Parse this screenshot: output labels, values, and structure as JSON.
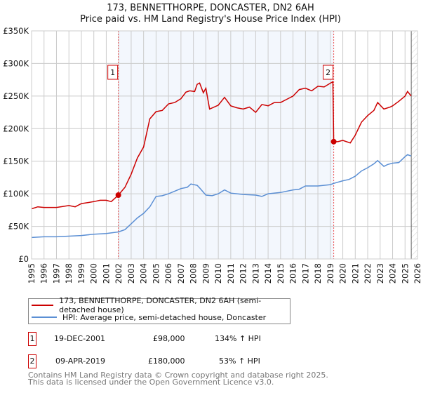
{
  "chart_data": {
    "type": "line",
    "title": "173, BENNETTHORPE, DONCASTER, DN2 6AH",
    "subtitle": "Price paid vs. HM Land Registry's House Price Index (HPI)",
    "xlim": [
      1995,
      2026
    ],
    "ylim": [
      0,
      350000
    ],
    "x_ticks": [
      "1995",
      "1996",
      "1997",
      "1998",
      "1999",
      "2000",
      "2001",
      "2002",
      "2003",
      "2004",
      "2005",
      "2006",
      "2007",
      "2008",
      "2009",
      "2010",
      "2011",
      "2012",
      "2013",
      "2014",
      "2015",
      "2016",
      "2017",
      "2018",
      "2019",
      "2020",
      "2021",
      "2022",
      "2023",
      "2024",
      "2025",
      "2026"
    ],
    "y_ticks": [
      {
        "v": 0,
        "label": "£0"
      },
      {
        "v": 50000,
        "label": "£50K"
      },
      {
        "v": 100000,
        "label": "£100K"
      },
      {
        "v": 150000,
        "label": "£150K"
      },
      {
        "v": 200000,
        "label": "£200K"
      },
      {
        "v": 250000,
        "label": "£250K"
      },
      {
        "v": 300000,
        "label": "£300K"
      },
      {
        "v": 350000,
        "label": "£350K"
      }
    ],
    "grid": true,
    "shaded_range": [
      2001.97,
      2019.27
    ],
    "hatched_from": 2025.5,
    "series": [
      {
        "name": "173, BENNETTHORPE, DONCASTER, DN2 6AH (semi-detached house)",
        "color": "#cc0000",
        "x": [
          1995,
          1995.5,
          1996,
          1997,
          1998,
          1998.5,
          1999,
          2000,
          2000.5,
          2001,
          2001.4,
          2001.97,
          2002.5,
          2003,
          2003.5,
          2004,
          2004.5,
          2005,
          2005.5,
          2006,
          2006.5,
          2007,
          2007.4,
          2007.7,
          2008.1,
          2008.3,
          2008.5,
          2008.8,
          2009,
          2009.3,
          2010,
          2010.5,
          2011,
          2011.5,
          2012,
          2012.5,
          2013,
          2013.5,
          2014,
          2014.5,
          2015,
          2015.5,
          2016,
          2016.5,
          2017,
          2017.5,
          2018,
          2018.5,
          2019.2,
          2019.27,
          2019.6,
          2020,
          2020.6,
          2021,
          2021.5,
          2022,
          2022.5,
          2022.8,
          2023.3,
          2023.8,
          2024,
          2024.5,
          2025,
          2025.2,
          2025.5
        ],
        "y": [
          77000,
          80000,
          79000,
          79000,
          82000,
          80000,
          85000,
          88000,
          90000,
          90000,
          88000,
          98000,
          110000,
          130000,
          155000,
          172000,
          215000,
          226000,
          228000,
          238000,
          240000,
          246000,
          256000,
          258000,
          257000,
          268000,
          270000,
          255000,
          262000,
          230000,
          236000,
          248000,
          235000,
          232000,
          230000,
          233000,
          225000,
          237000,
          235000,
          240000,
          240000,
          245000,
          250000,
          260000,
          262000,
          258000,
          265000,
          264000,
          272000,
          180000,
          180000,
          182000,
          178000,
          190000,
          210000,
          220000,
          228000,
          240000,
          230000,
          233000,
          235000,
          242000,
          250000,
          257000,
          250000
        ]
      },
      {
        "name": "HPI: Average price, semi-detached house, Doncaster",
        "color": "#5b8fd4",
        "x": [
          1995,
          1996,
          1997,
          1998,
          1999,
          2000,
          2001,
          2001.97,
          2002.5,
          2003,
          2003.5,
          2004,
          2004.5,
          2005,
          2005.5,
          2006,
          2006.5,
          2007,
          2007.5,
          2007.8,
          2008.3,
          2008.5,
          2009,
          2009.5,
          2010,
          2010.5,
          2011,
          2011.5,
          2012,
          2013,
          2013.5,
          2014,
          2015,
          2016,
          2016.5,
          2017,
          2018,
          2019,
          2019.27,
          2020,
          2020.5,
          2021,
          2021.5,
          2022,
          2022.5,
          2022.8,
          2023.3,
          2023.6,
          2024,
          2024.5,
          2025,
          2025.2,
          2025.5
        ],
        "y": [
          33000,
          34000,
          34000,
          35000,
          36000,
          38000,
          39000,
          41500,
          45000,
          54000,
          63000,
          70000,
          80000,
          96000,
          97000,
          100000,
          104000,
          108000,
          110000,
          115000,
          113000,
          109000,
          98000,
          97000,
          100000,
          106000,
          101000,
          100000,
          99000,
          98000,
          96000,
          100000,
          102000,
          106000,
          107000,
          112000,
          112000,
          114000,
          116000,
          120000,
          122000,
          127000,
          135000,
          140000,
          146000,
          151000,
          142000,
          145000,
          147000,
          148000,
          157000,
          160000,
          158000
        ]
      }
    ],
    "annotations": [
      {
        "label": "1",
        "x": 2001.97,
        "y": 98000
      },
      {
        "label": "2",
        "x": 2019.27,
        "y": 180000
      }
    ]
  },
  "legend": {
    "items": [
      "173, BENNETTHORPE, DONCASTER, DN2 6AH (semi-detached house)",
      "HPI: Average price, semi-detached house, Doncaster"
    ]
  },
  "transactions": [
    {
      "num": "1",
      "date": "19-DEC-2001",
      "price": "£98,000",
      "hpi": "134% ↑ HPI"
    },
    {
      "num": "2",
      "date": "09-APR-2019",
      "price": "£180,000",
      "hpi": "53% ↑ HPI"
    }
  ],
  "footer": [
    "Contains HM Land Registry data © Crown copyright and database right 2025.",
    "This data is licensed under the Open Government Licence v3.0."
  ]
}
